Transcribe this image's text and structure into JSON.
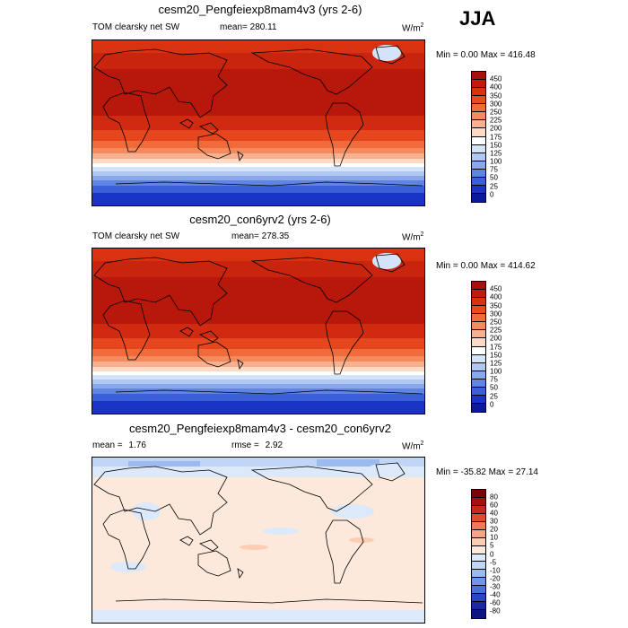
{
  "season": "JJA",
  "units_prefix": "W/m",
  "units_exp": "2",
  "panels": [
    {
      "title": "cesm20_Pengfeiexp8mam4v3 (yrs 2-6)",
      "left_label": "TOM clearsky net SW",
      "center_prefix": "mean=",
      "center_value": "280.11",
      "min_label": "Min =",
      "min_value": "0.00",
      "max_label": "Max =",
      "max_value": "416.48",
      "colorbar": {
        "ticks": [
          "450",
          "400",
          "350",
          "300",
          "250",
          "225",
          "200",
          "175",
          "150",
          "125",
          "100",
          "75",
          "50",
          "25",
          "0"
        ],
        "colors": [
          "#a50f0c",
          "#c21b0c",
          "#d93210",
          "#e84b1f",
          "#f06a3a",
          "#f48b5e",
          "#f8b190",
          "#fcdac5",
          "#ffffff",
          "#d3e3f8",
          "#b0c8f2",
          "#8aa9ec",
          "#5e84e4",
          "#3a5fd8",
          "#1934c4",
          "#0a1b9a"
        ]
      }
    },
    {
      "title": "cesm20_con6yrv2 (yrs 2-6)",
      "left_label": "TOM clearsky net SW",
      "center_prefix": "mean=",
      "center_value": "278.35",
      "min_label": "Min =",
      "min_value": "0.00",
      "max_label": "Max =",
      "max_value": "414.62",
      "colorbar": {
        "ticks": [
          "450",
          "400",
          "350",
          "300",
          "250",
          "225",
          "200",
          "175",
          "150",
          "125",
          "100",
          "75",
          "50",
          "25",
          "0"
        ],
        "colors": [
          "#a50f0c",
          "#c21b0c",
          "#d93210",
          "#e84b1f",
          "#f06a3a",
          "#f48b5e",
          "#f8b190",
          "#fcdac5",
          "#ffffff",
          "#d3e3f8",
          "#b0c8f2",
          "#8aa9ec",
          "#5e84e4",
          "#3a5fd8",
          "#1934c4",
          "#0a1b9a"
        ]
      }
    },
    {
      "title": "cesm20_Pengfeiexp8mam4v3 - cesm20_con6yrv2",
      "left_label": "mean =",
      "left_value": "1.76",
      "center_prefix": "rmse =",
      "center_value": "2.92",
      "min_label": "Min =",
      "min_value": "-35.82",
      "max_label": "Max =",
      "max_value": "27.14",
      "colorbar": {
        "ticks": [
          "80",
          "60",
          "40",
          "30",
          "20",
          "10",
          "5",
          "0",
          "-5",
          "-10",
          "-20",
          "-30",
          "-40",
          "-60",
          "-80"
        ],
        "colors": [
          "#7a0403",
          "#a50f0c",
          "#c8281b",
          "#e04a2e",
          "#f07a56",
          "#f8a585",
          "#fbcdb3",
          "#fde8dc",
          "#dce9fb",
          "#c0d6f6",
          "#9bbbf0",
          "#6f96e6",
          "#4a6fda",
          "#2b46c4",
          "#1a28a6",
          "#0c1480"
        ]
      }
    }
  ]
}
